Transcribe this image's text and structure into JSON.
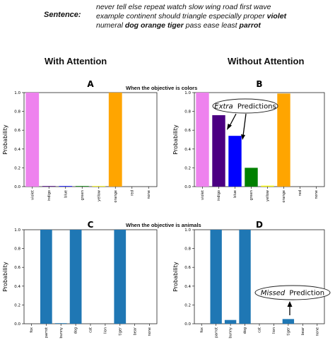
{
  "sentence": {
    "label": "Sentence:",
    "line1": "never tell else repeat watch slow wing road first wave",
    "line2_plain": "example continent should triangle especially proper",
    "line2_bold": "violet",
    "line3_plain1": "numeral",
    "line3_bold1": "dog orange tiger",
    "line3_plain2": "pass ease least",
    "line3_bold2": "parrot"
  },
  "headings": {
    "with": "With Attention",
    "without": "Without Attention"
  },
  "objectives": {
    "colors": "When the objective is colors",
    "animals": "When the objective is animals"
  },
  "callouts": {
    "extra_em": "Extra",
    "extra_rest": "Predictions",
    "missed_em": "Missed",
    "missed_rest": "Prediction"
  },
  "chart_data": [
    {
      "type": "bar",
      "panel": "A",
      "ylabel": "Probability",
      "ylim": [
        0,
        1.0
      ],
      "yticks": [
        "0.0",
        "0.2",
        "0.4",
        "0.6",
        "0.8",
        "1.0"
      ],
      "categories": [
        "violet",
        "indigo",
        "blue",
        "green",
        "yellow",
        "orange",
        "red",
        "none"
      ],
      "values": [
        1.0,
        0.005,
        0.005,
        0.005,
        0.003,
        1.0,
        0.0,
        0.0
      ],
      "colors": [
        "#ee82ee",
        "#4b0082",
        "#0000ff",
        "#008000",
        "#ffff00",
        "#ffa500",
        "#ff0000",
        "#000000"
      ]
    },
    {
      "type": "bar",
      "panel": "B",
      "ylabel": "Probability",
      "ylim": [
        0,
        1.0
      ],
      "yticks": [
        "0.0",
        "0.2",
        "0.4",
        "0.6",
        "0.8",
        "1.0"
      ],
      "categories": [
        "violet",
        "indigo",
        "blue",
        "green",
        "yellow",
        "orange",
        "red",
        "none"
      ],
      "values": [
        1.0,
        0.76,
        0.54,
        0.2,
        0.01,
        0.99,
        0.0,
        0.0
      ],
      "colors": [
        "#ee82ee",
        "#4b0082",
        "#0000ff",
        "#008000",
        "#ffff00",
        "#ffa500",
        "#ff0000",
        "#000000"
      ]
    },
    {
      "type": "bar",
      "panel": "C",
      "ylabel": "Probability",
      "ylim": [
        0,
        1.0
      ],
      "yticks": [
        "0.0",
        "0.2",
        "0.4",
        "0.6",
        "0.8",
        "1.0"
      ],
      "categories": [
        "fox",
        "parrot",
        "bunny",
        "dog",
        "cat",
        "lion",
        "tiger",
        "bear",
        "none"
      ],
      "values": [
        0.0,
        1.0,
        0.004,
        1.0,
        0.0,
        0.0,
        1.0,
        0.0,
        0.0
      ],
      "colors": [
        "#1f77b4"
      ]
    },
    {
      "type": "bar",
      "panel": "D",
      "ylabel": "Probability",
      "ylim": [
        0,
        1.0
      ],
      "yticks": [
        "0.0",
        "0.2",
        "0.4",
        "0.6",
        "0.8",
        "1.0"
      ],
      "categories": [
        "fox",
        "parrot",
        "bunny",
        "dog",
        "cat",
        "lion",
        "tiger",
        "bear",
        "none"
      ],
      "values": [
        0.0,
        1.0,
        0.04,
        1.0,
        0.0,
        0.0,
        0.05,
        0.0,
        0.0
      ],
      "colors": [
        "#1f77b4"
      ]
    }
  ]
}
